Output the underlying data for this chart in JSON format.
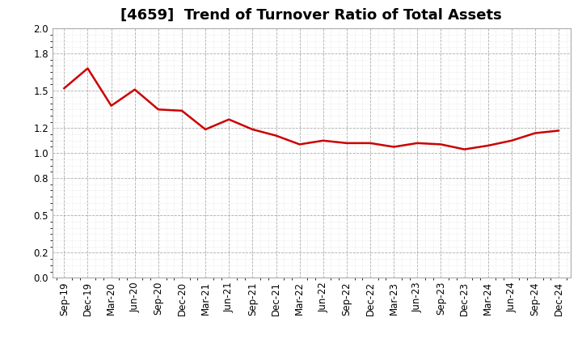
{
  "title": "[4659]  Trend of Turnover Ratio of Total Assets",
  "labels": [
    "Sep-19",
    "Dec-19",
    "Mar-20",
    "Jun-20",
    "Sep-20",
    "Dec-20",
    "Mar-21",
    "Jun-21",
    "Sep-21",
    "Dec-21",
    "Mar-22",
    "Jun-22",
    "Sep-22",
    "Dec-22",
    "Mar-23",
    "Jun-23",
    "Sep-23",
    "Dec-23",
    "Mar-24",
    "Jun-24",
    "Sep-24",
    "Dec-24"
  ],
  "values": [
    1.52,
    1.68,
    1.38,
    1.51,
    1.35,
    1.34,
    1.19,
    1.27,
    1.19,
    1.14,
    1.07,
    1.1,
    1.08,
    1.08,
    1.05,
    1.08,
    1.07,
    1.03,
    1.06,
    1.1,
    1.16,
    1.18
  ],
  "line_color": "#cc0000",
  "background_color": "#ffffff",
  "major_grid_color": "#888888",
  "minor_grid_color": "#cccccc",
  "ylim": [
    0.0,
    2.0
  ],
  "yticks": [
    0.0,
    0.2,
    0.5,
    0.8,
    1.0,
    1.2,
    1.5,
    1.8,
    2.0
  ],
  "title_fontsize": 13,
  "tick_fontsize": 8.5,
  "line_width": 1.8
}
